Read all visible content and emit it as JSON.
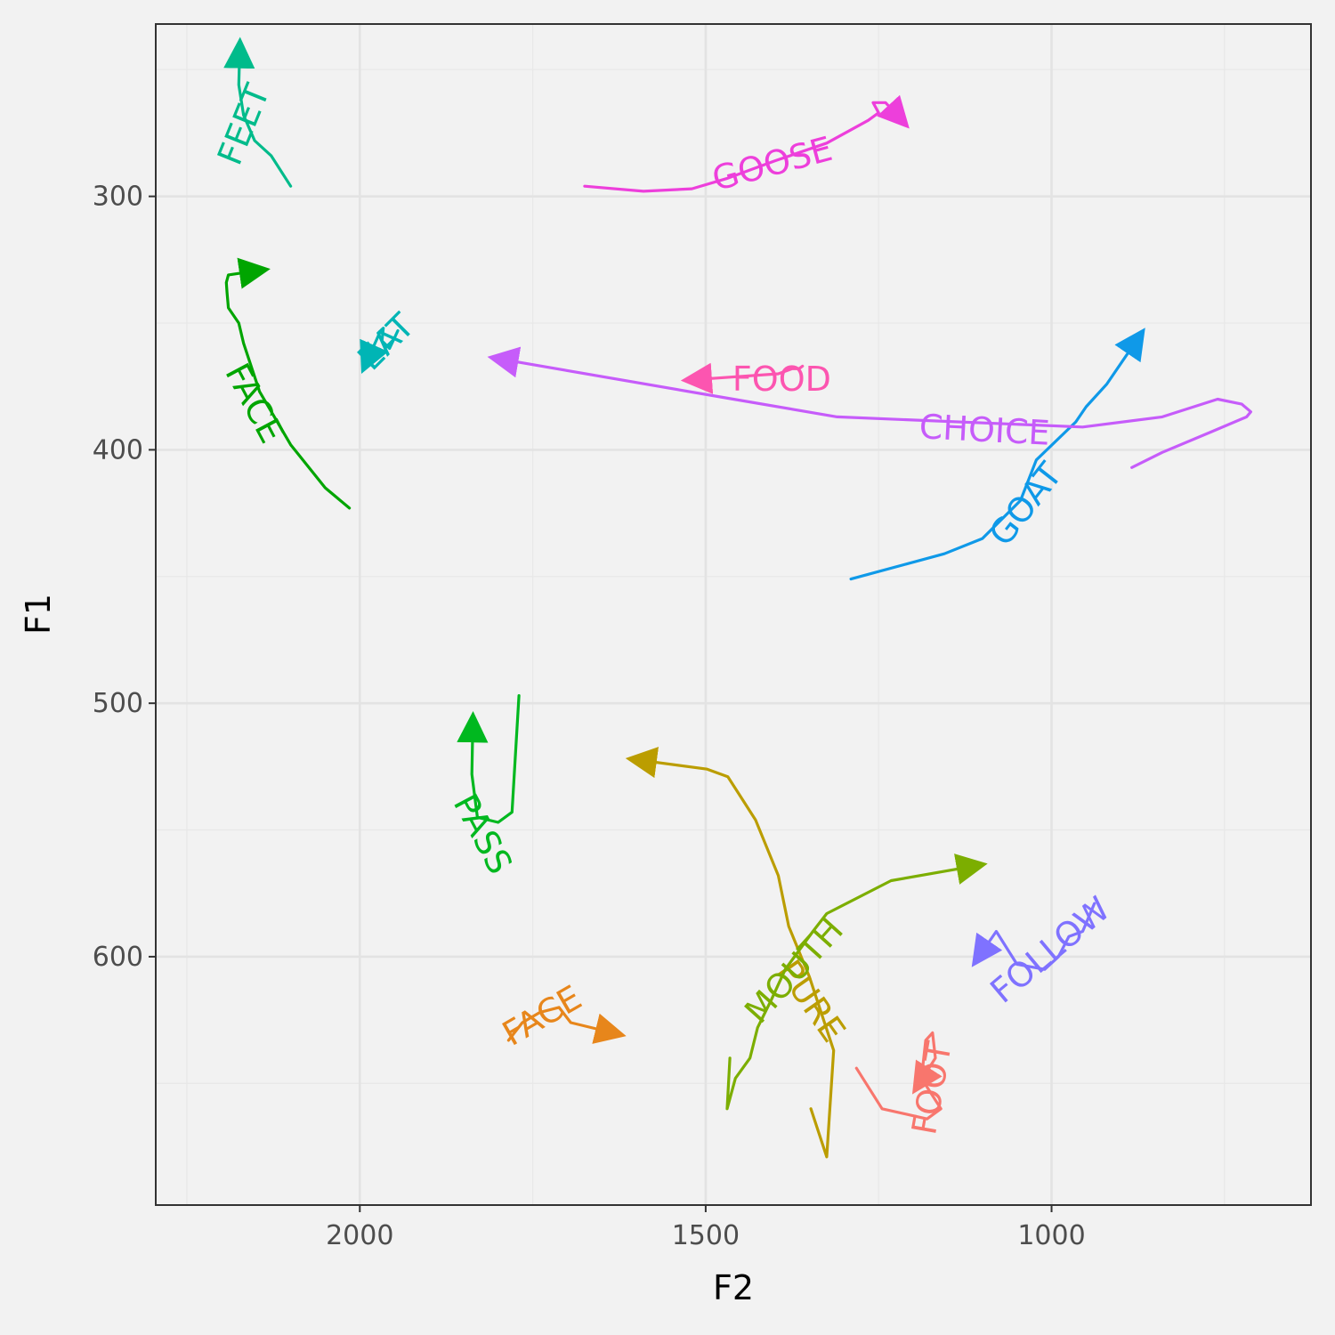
{
  "chart_data": {
    "type": "line",
    "xlabel": "F2",
    "ylabel": "F1",
    "x_reversed": true,
    "y_reversed": true,
    "xlim": [
      2295,
      625
    ],
    "ylim": [
      232,
      698
    ],
    "x_ticks": [
      2000,
      1500,
      1000
    ],
    "y_ticks": [
      300,
      400,
      500,
      600
    ],
    "grid": true,
    "legend": "none",
    "series": [
      {
        "name": "FOOT",
        "color": "#F8766D",
        "label": {
          "x": 1170,
          "y": 652,
          "angle": -80
        },
        "points": [
          [
            1282,
            644
          ],
          [
            1245,
            660
          ],
          [
            1180,
            664
          ],
          [
            1160,
            660
          ],
          [
            1188,
            648
          ],
          [
            1182,
            633
          ],
          [
            1172,
            630
          ],
          [
            1168,
            640
          ],
          [
            1182,
            646
          ]
        ]
      },
      {
        "name": "FACE",
        "color": "#E7861B",
        "label": {
          "x": 1735,
          "y": 624,
          "angle": -30
        },
        "points": [
          [
            1785,
            633
          ],
          [
            1765,
            626
          ],
          [
            1740,
            622
          ],
          [
            1712,
            620
          ],
          [
            1695,
            626
          ],
          [
            1650,
            629
          ]
        ]
      },
      {
        "name": "PURE",
        "color": "#BB9D00",
        "label": {
          "x": 1350,
          "y": 618,
          "angle": 55
        },
        "points": [
          [
            1348,
            660
          ],
          [
            1325,
            679
          ],
          [
            1322,
            666
          ],
          [
            1315,
            637
          ],
          [
            1350,
            608
          ],
          [
            1380,
            588
          ],
          [
            1395,
            568
          ],
          [
            1428,
            546
          ],
          [
            1468,
            529
          ],
          [
            1498,
            526
          ],
          [
            1580,
            523
          ]
        ]
      },
      {
        "name": "MOUTH",
        "color": "#7CAE00",
        "label": {
          "x": 1370,
          "y": 606,
          "angle": -48
        },
        "points": [
          [
            1465,
            640
          ],
          [
            1469,
            660
          ],
          [
            1457,
            648
          ],
          [
            1436,
            640
          ],
          [
            1425,
            628
          ],
          [
            1405,
            617
          ],
          [
            1385,
            605
          ],
          [
            1345,
            590
          ],
          [
            1325,
            583
          ],
          [
            1232,
            570
          ],
          [
            1128,
            565
          ]
        ]
      },
      {
        "name": "FACE",
        "color": "#00A500",
        "label": {
          "x": 2155,
          "y": 382,
          "angle": 62
        },
        "points": [
          [
            2015,
            423
          ],
          [
            2050,
            415
          ],
          [
            2100,
            398
          ],
          [
            2145,
            377
          ],
          [
            2168,
            358
          ],
          [
            2175,
            350
          ],
          [
            2190,
            344
          ],
          [
            2192,
            338
          ],
          [
            2193,
            334
          ],
          [
            2190,
            331
          ],
          [
            2165,
            330
          ]
        ]
      },
      {
        "name": "PASS",
        "color": "#00B81F",
        "label": {
          "x": 1825,
          "y": 552,
          "angle": 62
        },
        "points": [
          [
            1770,
            497
          ],
          [
            1780,
            543
          ],
          [
            1800,
            547
          ],
          [
            1830,
            545
          ],
          [
            1838,
            528
          ],
          [
            1837,
            513
          ]
        ]
      },
      {
        "name": "FEET",
        "color": "#00BB8B",
        "label": {
          "x": 2165,
          "y": 272,
          "angle": -68
        },
        "points": [
          [
            2100,
            296
          ],
          [
            2128,
            284
          ],
          [
            2152,
            278
          ],
          [
            2168,
            268
          ],
          [
            2175,
            256
          ],
          [
            2174,
            247
          ]
        ]
      },
      {
        "name": "EAT",
        "color": "#00B5B5",
        "label": {
          "x": 1960,
          "y": 358,
          "angle": -45
        },
        "points": [
          [
            1945,
            353
          ],
          [
            1957,
            360
          ],
          [
            1968,
            357
          ],
          [
            1966,
            352
          ],
          [
            1970,
            353
          ],
          [
            1983,
            361
          ]
        ]
      },
      {
        "name": "GOAT",
        "color": "#0F99E8",
        "label": {
          "x": 1035,
          "y": 422,
          "angle": -52
        },
        "points": [
          [
            1290,
            451
          ],
          [
            1155,
            441
          ],
          [
            1100,
            435
          ],
          [
            1045,
            420
          ],
          [
            1022,
            404
          ],
          [
            965,
            389
          ],
          [
            950,
            383
          ],
          [
            920,
            374
          ],
          [
            885,
            360
          ]
        ]
      },
      {
        "name": "CHOICE",
        "color": "#C65CFA",
        "label": {
          "x": 1097,
          "y": 393,
          "angle": 3
        },
        "points": [
          [
            884,
            407
          ],
          [
            840,
            401
          ],
          [
            770,
            393
          ],
          [
            718,
            387
          ],
          [
            712,
            385
          ],
          [
            725,
            382
          ],
          [
            760,
            380
          ],
          [
            840,
            387
          ],
          [
            955,
            391
          ],
          [
            1310,
            387
          ],
          [
            1460,
            380
          ],
          [
            1780,
            365
          ]
        ]
      },
      {
        "name": "GOOSE",
        "color": "#ED3FDB",
        "label": {
          "x": 1403,
          "y": 288,
          "angle": -15
        },
        "points": [
          [
            1675,
            296
          ],
          [
            1590,
            298
          ],
          [
            1520,
            297
          ],
          [
            1470,
            293
          ],
          [
            1400,
            286
          ],
          [
            1325,
            279
          ],
          [
            1265,
            270
          ],
          [
            1250,
            267
          ],
          [
            1258,
            263
          ],
          [
            1240,
            263
          ],
          [
            1230,
            266
          ]
        ]
      },
      {
        "name": "FOOD",
        "color": "#FC55B0",
        "label": {
          "x": 1390,
          "y": 373,
          "angle": 0
        },
        "points": [
          [
            1360,
            367
          ],
          [
            1365,
            368
          ],
          [
            1375,
            368
          ],
          [
            1395,
            370
          ],
          [
            1500,
            372
          ]
        ]
      },
      {
        "name": "FOLLOW",
        "color": "#7F72FF",
        "label": {
          "x": 1000,
          "y": 598,
          "angle": -40
        },
        "points": [
          [
            938,
            579
          ],
          [
            955,
            590
          ],
          [
            975,
            592
          ],
          [
            990,
            600
          ],
          [
            1010,
            605
          ],
          [
            1050,
            603
          ],
          [
            1080,
            590
          ],
          [
            1095,
            596
          ]
        ]
      }
    ]
  }
}
